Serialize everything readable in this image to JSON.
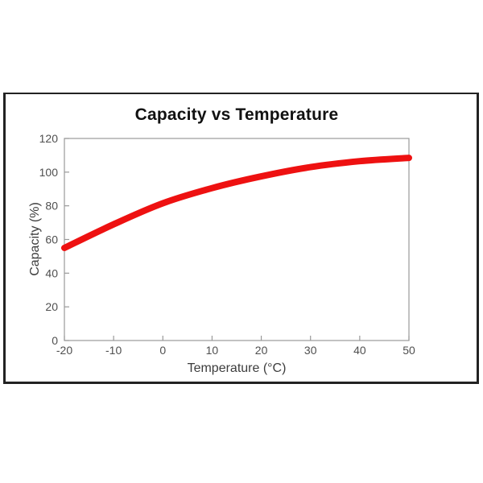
{
  "chart_data": {
    "type": "line",
    "title": "Capacity vs Temperature",
    "xlabel": "Temperature (°C)",
    "ylabel": "Capacity (%)",
    "xlim": [
      -20,
      50
    ],
    "ylim": [
      0,
      120
    ],
    "xticks": [
      -20,
      -10,
      0,
      10,
      20,
      30,
      40,
      50
    ],
    "xtick_labels": [
      "-20",
      "-10",
      "0",
      "10",
      "20",
      "30",
      "40",
      "50"
    ],
    "yticks": [
      0,
      20,
      40,
      60,
      80,
      100,
      120
    ],
    "ytick_labels": [
      "0",
      "20",
      "40",
      "60",
      "80",
      "100",
      "120"
    ],
    "grid": false,
    "legend": "none",
    "series": [
      {
        "name": "Capacity",
        "x": [
          -20,
          -10,
          0,
          10,
          20,
          30,
          40,
          50
        ],
        "y": [
          55,
          69,
          81.5,
          90.5,
          97.5,
          103,
          106.5,
          108.5
        ]
      }
    ],
    "colors": {
      "curve": "#ee1111",
      "axis_line": "#999999",
      "tick_label": "#4f4f4f",
      "axis_title": "#3d3d3d",
      "title": "#111111",
      "frame_border": "#222222",
      "background": "#ffffff"
    }
  }
}
